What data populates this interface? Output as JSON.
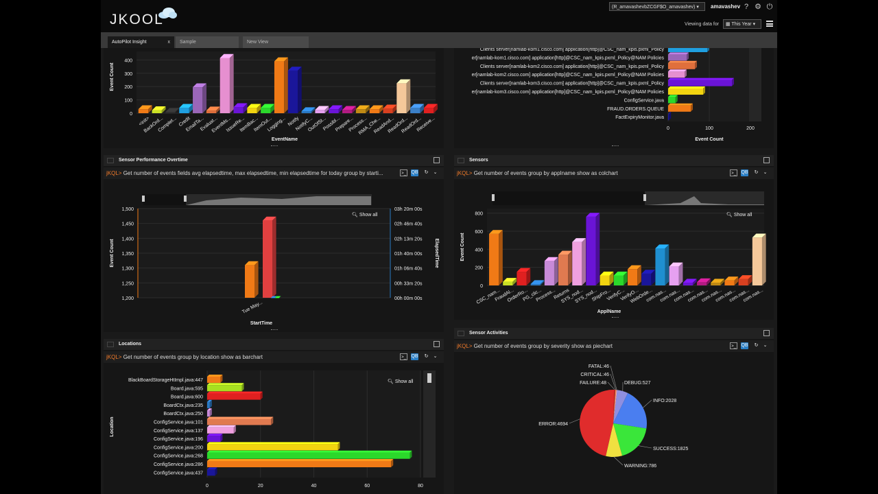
{
  "header": {
    "logo_text": "JKOOL",
    "user_select": "(R_amavashevbZCGF$O_amavashev)",
    "user_name": "amavashev",
    "viewing_label": "Viewing data for",
    "period": "This Year",
    "icons": [
      "help-icon",
      "gear-icon",
      "power-icon"
    ]
  },
  "tabs": [
    {
      "label": "AutoPilot Insight",
      "close": "x",
      "active": true
    },
    {
      "label": "Sample",
      "active": false
    },
    {
      "label": "New View",
      "active": false
    }
  ],
  "panels": {
    "events_by_name": {
      "chart_data": {
        "type": "bar",
        "xlabel": "EventName",
        "ylabel": "Event Count",
        "ylim": [
          0,
          450
        ],
        "yticks": [
          "0",
          "100",
          "200",
          "300",
          "400"
        ],
        "categories": [
          "<init>",
          "BackOrd...",
          "Complet...",
          "Credit",
          "EmailTa...",
          "Evaluat...",
          "EventMs...",
          "IssueRe...",
          "ItemBac...",
          "ItemOut...",
          "Logging...",
          "Notify",
          "NotifyC...",
          "OutOfSt...",
          "Possibl...",
          "Prepare...",
          "Process...",
          "RMA_Che...",
          "ReadAnd...",
          "ReadOrd...",
          "ReadOrd...",
          "Receive..."
        ],
        "values": [
          30,
          22,
          10,
          40,
          195,
          20,
          415,
          45,
          40,
          40,
          390,
          320,
          15,
          25,
          30,
          25,
          30,
          30,
          35,
          225,
          40,
          40
        ],
        "colors": [
          "#f07a16",
          "#c9e025",
          "#2f2f2f",
          "#1f9fe0",
          "#9a66b8",
          "#e06f3c",
          "#e68fd0",
          "#6a14d6",
          "#f2d410",
          "#2bd82b",
          "#f07a16",
          "#1a169a",
          "#2a78c2",
          "#e6a0f0",
          "#6a14d6",
          "#b21a82",
          "#c08a14",
          "#f07a16",
          "#d84020",
          "#f5c89a",
          "#3b80c8",
          "#e02020"
        ]
      }
    },
    "clients": {
      "chart_data": {
        "type": "bar",
        "orientation": "horizontal",
        "xlabel": "Event Count",
        "xticks": [
          "0",
          "100",
          "200"
        ],
        "xlim": [
          0,
          240
        ],
        "categories": [
          "Clients server[namlab-kom1.cisco.com] application[http]@CSC_nam_kpis.pxml_Policy",
          "er[namlab-kom1.cisco.com] application[http]@CSC_nam_kpis.pxml_Policy@NAM Policies",
          "Clients server[namlab-kom2.cisco.com] application[http]@CSC_nam_kpis.pxml_Policy",
          "er[namlab-kom2.cisco.com] application[http]@CSC_nam_kpis.pxml_Policy@NAM Policies",
          "Clients server[namlab-kom3.cisco.com] application[http]@CSC_nam_kpis.pxml_Policy",
          "er[namlab-kom3.cisco.com] application[http]@CSC_nam_kpis.pxml_Policy@NAM Policies",
          "ConfigService.java",
          "FRAUD.ORDERS.QUEUE",
          "FactExpiryMonitor.java"
        ],
        "values": [
          95,
          45,
          65,
          40,
          155,
          85,
          18,
          55,
          2
        ],
        "colors": [
          "#1f9fe0",
          "#9a66b8",
          "#e06f3c",
          "#e68fd0",
          "#6a14d6",
          "#f2d410",
          "#2bd82b",
          "#f07a16",
          "#1a169a"
        ]
      }
    },
    "sensor_performance": {
      "title": "Sensor Performance Overtime",
      "query_prefix": "jKQL>",
      "query": "Get number of events fields avg elapsedtime, max elapsedtime, min elapsedtime for today group by starti...",
      "show_all": "Show all",
      "chart_data": {
        "type": "bar",
        "xlabel": "StartTime",
        "ylabel": "Event Count",
        "y2label": "ElapsedTime",
        "ylim": [
          1200,
          1500
        ],
        "yticks": [
          "1,500",
          "1,450",
          "1,400",
          "1,350",
          "1,300",
          "1,250",
          "1,200"
        ],
        "y2ticks": [
          "03h 20m 00s",
          "02h 46m 40s",
          "02h 13m 20s",
          "01h 40m 00s",
          "01h 06m 40s",
          "00h 33m 20s",
          "00h 00m 00s"
        ],
        "categories": [
          "Tue May..."
        ],
        "series": [
          {
            "values": [
              1310
            ],
            "color": "#f07a16"
          },
          {
            "values": [
              1460
            ],
            "color": "#e04040"
          },
          {
            "values": [
              1200
            ],
            "color": "#2a78c2"
          },
          {
            "values": [
              1200
            ],
            "color": "#2bd82b"
          }
        ]
      }
    },
    "sensors": {
      "title": "Sensors",
      "query_prefix": "jKQL>",
      "query": "Get number of events group by appIname show as colchart",
      "show_all": "Show all",
      "chart_data": {
        "type": "bar",
        "xlabel": "ApplName",
        "ylabel": "Event Count",
        "ylim": [
          0,
          850
        ],
        "yticks": [
          "0",
          "200",
          "400",
          "600",
          "800"
        ],
        "categories": [
          "CSC_nam...",
          "FraudAl...",
          "OrderRo...",
          "PG_clic...",
          "Process...",
          "Returns",
          "SYS_nod...",
          "SYS_nod...",
          "ShipFro...",
          "VerifyC...",
          "VerifyO...",
          "WebOrde...",
          "com.nas...",
          "com.nas...",
          "com.nas...",
          "com.nas...",
          "com.nas...",
          "com.nas...",
          "com.nas...",
          "com.nas..."
        ],
        "values": [
          570,
          40,
          150,
          15,
          270,
          340,
          480,
          760,
          110,
          110,
          180,
          130,
          410,
          210,
          30,
          35,
          30,
          55,
          70,
          530
        ],
        "colors": [
          "#f07a16",
          "#c9e025",
          "#e02020",
          "#2a78c2",
          "#c88ad8",
          "#e07a50",
          "#f0a0e0",
          "#6a14d6",
          "#f2d410",
          "#2bd82b",
          "#f07a16",
          "#1a169a",
          "#1f8fd0",
          "#e6a0f0",
          "#6a14d6",
          "#b21a82",
          "#c08a14",
          "#f07a16",
          "#d84020",
          "#f5c89a"
        ]
      }
    },
    "locations": {
      "title": "Locations",
      "query_prefix": "jKQL>",
      "query": "Get number of events group by location show as barchart",
      "show_all": "Show all",
      "chart_data": {
        "type": "bar",
        "orientation": "horizontal",
        "ylabel": "Location",
        "xticks": [
          "0",
          "20",
          "40",
          "60",
          "80"
        ],
        "xlim": [
          0,
          80
        ],
        "categories": [
          "BlackBoardStorageHtImpl.java:447",
          "Board.java:595",
          "Board.java:600",
          "BoardCtx.java:235",
          "BoardCtx.java:250",
          "ConfigService.java:101",
          "ConfigService.java:137",
          "ConfigService.java:196",
          "ConfigService.java:200",
          "ConfigService.java:268",
          "ConfigService.java:286",
          "ConfigService.java:437"
        ],
        "values": [
          5,
          13,
          20,
          1,
          1,
          24,
          10,
          5,
          49,
          76,
          69,
          3
        ],
        "colors": [
          "#f07a16",
          "#a8e020",
          "#e02020",
          "#2a78c2",
          "#c88ad8",
          "#e07a50",
          "#f0a0e0",
          "#6a14d6",
          "#f2d410",
          "#2bd82b",
          "#f07a16",
          "#1a169a"
        ]
      }
    },
    "sensor_activities": {
      "title": "Sensor Activities",
      "query_prefix": "jKQL>",
      "query": "Get number of events group by severity show as piechart",
      "chart_data": {
        "type": "pie",
        "slices": [
          {
            "label": "DEBUG:527",
            "value": 527,
            "color": "#8f8fe0"
          },
          {
            "label": "INFO:2028",
            "value": 2028,
            "color": "#4a7ef0"
          },
          {
            "label": "SUCCESS:1825",
            "value": 1825,
            "color": "#3ae63a"
          },
          {
            "label": "WARNING:786",
            "value": 786,
            "color": "#f0e040"
          },
          {
            "label": "ERROR:4694",
            "value": 4694,
            "color": "#e02c2c"
          },
          {
            "label": "FAILURE:48",
            "value": 48,
            "color": "#c02020"
          },
          {
            "label": "CRITICAL:46",
            "value": 46,
            "color": "#f09050"
          },
          {
            "label": "FATAL:46",
            "value": 46,
            "color": "#f0a0c0"
          }
        ]
      }
    }
  }
}
